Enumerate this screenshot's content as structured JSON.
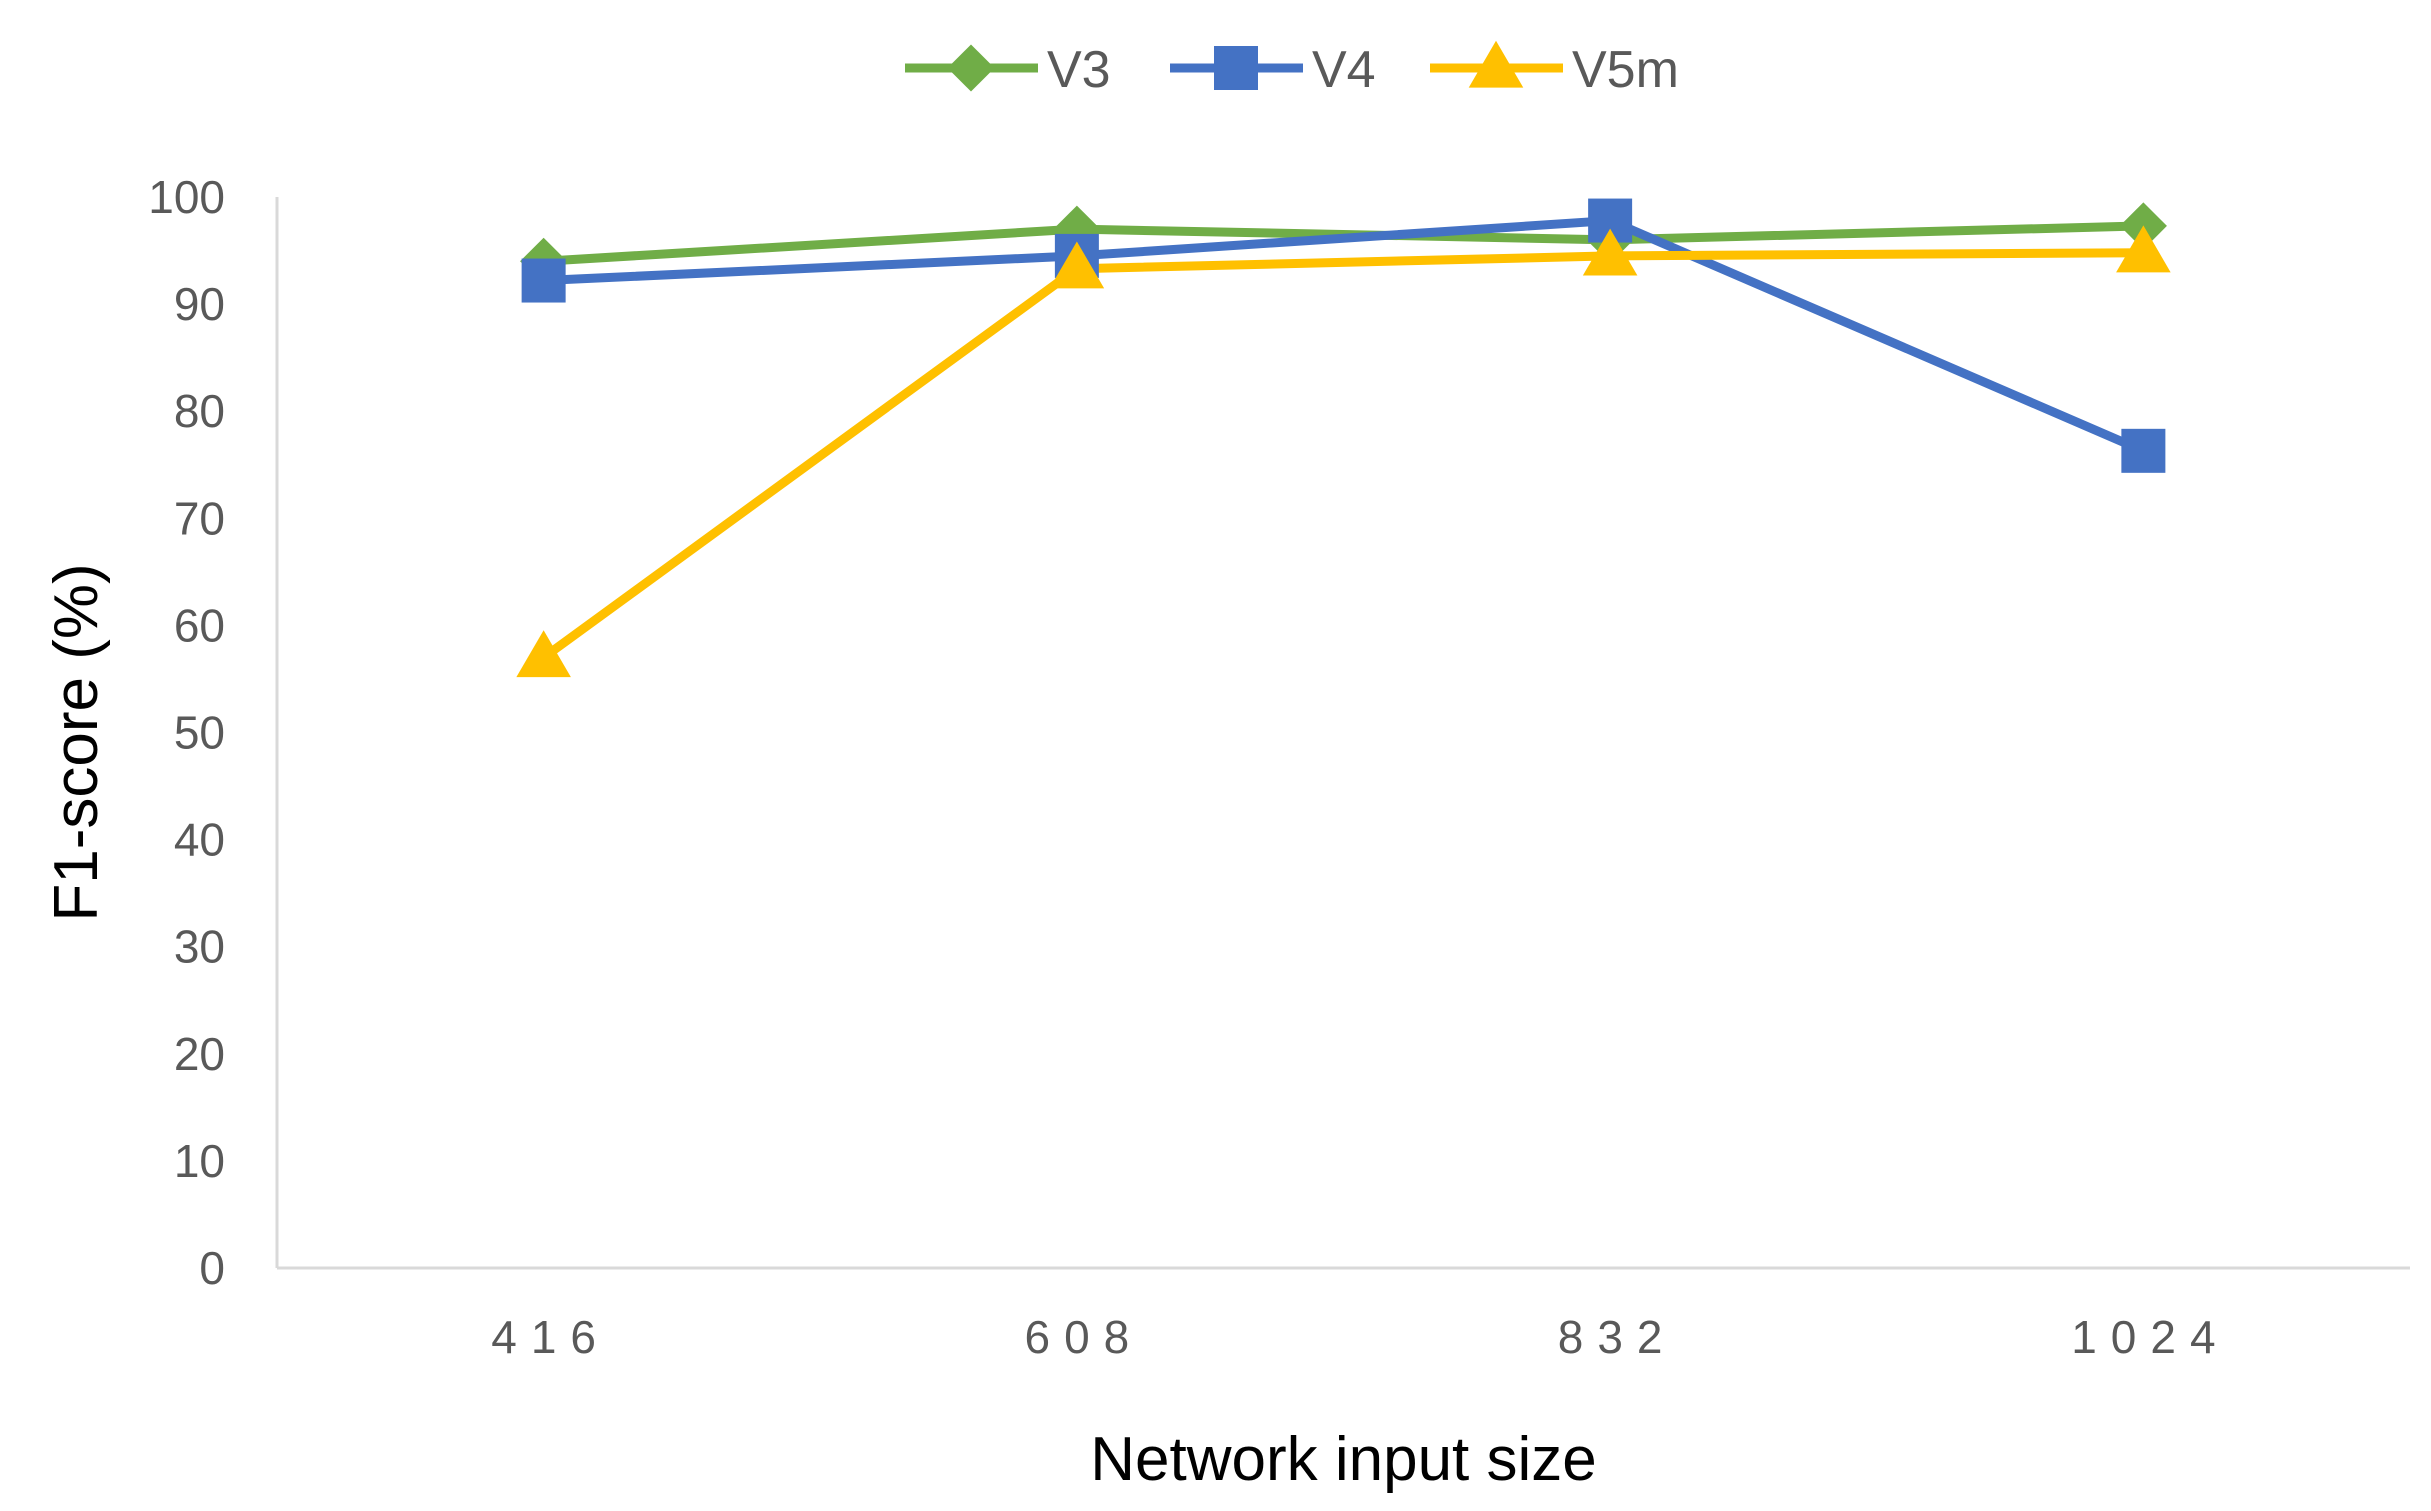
{
  "chart_data": {
    "type": "line",
    "title": "",
    "xlabel": "Network input size",
    "ylabel": "F1-score (%)",
    "categories": [
      "416",
      "608",
      "832",
      "1024"
    ],
    "ylim": [
      0,
      100
    ],
    "yticks": [
      0,
      10,
      20,
      30,
      40,
      50,
      60,
      70,
      80,
      90,
      100
    ],
    "grid": false,
    "legend_position": "top-center",
    "series": [
      {
        "name": "V3",
        "values": [
          94,
          97,
          96,
          97.3
        ],
        "color": "#70AD47",
        "marker": "diamond"
      },
      {
        "name": "V4",
        "values": [
          92.2,
          94.5,
          97.8,
          76.3
        ],
        "color": "#4472C4",
        "marker": "square"
      },
      {
        "name": "V5m",
        "values": [
          57,
          93.3,
          94.5,
          94.8
        ],
        "color": "#FFC000",
        "marker": "triangle"
      }
    ]
  }
}
